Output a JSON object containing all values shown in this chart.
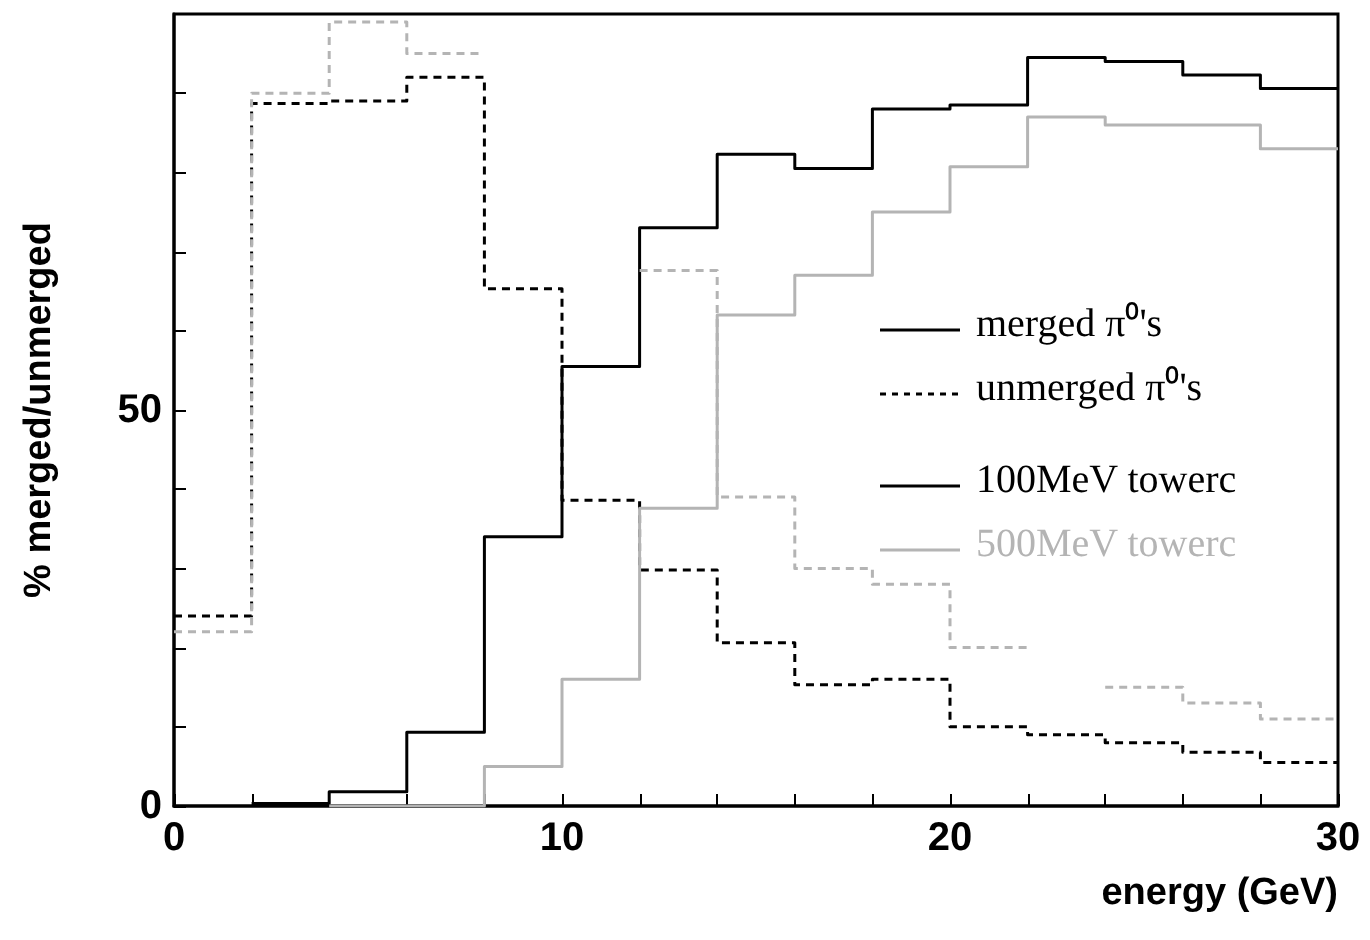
{
  "chart_data": {
    "type": "step",
    "xlabel": "energy (GeV)",
    "ylabel": "% merged/unmerged",
    "x": [
      0,
      2,
      4,
      6,
      8,
      10,
      12,
      14,
      16,
      18,
      20,
      22,
      24,
      26,
      28,
      30
    ],
    "series": [
      {
        "color": "#000000",
        "line_style": "solid",
        "values": [
          null,
          0.3,
          1.8,
          9.3,
          34,
          55.5,
          73,
          82.3,
          80.5,
          88,
          88.5,
          94.5,
          94,
          92.3,
          90.6,
          90.6
        ]
      },
      {
        "color": "#000000",
        "line_style": "dashed",
        "values": [
          24,
          88.7,
          89,
          92,
          65.3,
          38.6,
          29.8,
          20.6,
          15.3,
          16,
          10,
          9,
          8,
          6.8,
          5.5,
          5.5
        ]
      },
      {
        "color": "#b4b4b4",
        "line_style": "solid",
        "values": [
          null,
          null,
          0,
          0,
          5,
          16,
          37.6,
          62,
          67,
          75,
          80.7,
          87,
          86,
          86,
          83,
          83
        ]
      },
      {
        "color": "#b4b4b4",
        "line_style": "dashed",
        "values": [
          22,
          90,
          99,
          95,
          null,
          null,
          67.6,
          39,
          30,
          28,
          20,
          null,
          15,
          13,
          11,
          11
        ]
      }
    ],
    "annotations": [
      "merged π⁰'s",
      "unmerged π⁰'s",
      "100MeV towerc",
      "500MeV towerc"
    ],
    "xlim": [
      0,
      30
    ],
    "ylim": [
      0,
      100
    ],
    "xticks": [
      0,
      {
        "value": 2,
        "label": null
      },
      {
        "value": 4,
        "label": null
      },
      {
        "value": 6,
        "label": null
      },
      {
        "value": 8,
        "label": null
      },
      10,
      {
        "value": 12,
        "label": null
      },
      {
        "value": 14,
        "label": null
      },
      {
        "value": 16,
        "label": null
      },
      {
        "value": 18,
        "label": null
      },
      20,
      {
        "value": 22,
        "label": null
      },
      {
        "value": 24,
        "label": null
      },
      {
        "value": 26,
        "label": null
      },
      {
        "value": 28,
        "label": null
      },
      30
    ],
    "yticks": [
      0,
      {
        "value": 10,
        "label": null
      },
      {
        "value": 20,
        "label": null
      },
      {
        "value": 30,
        "label": null
      },
      {
        "value": 40,
        "label": null
      },
      50,
      {
        "value": 60,
        "label": null
      },
      {
        "value": 70,
        "label": null
      },
      {
        "value": 80,
        "label": null
      },
      {
        "value": 90,
        "label": null
      }
    ]
  }
}
